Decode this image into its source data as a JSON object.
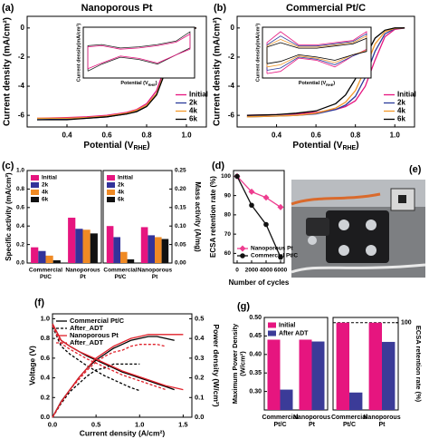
{
  "chart_data": [
    {
      "type": "line",
      "panel": "(a)",
      "title": "Nanoporous Pt",
      "xlabel": {
        "text": "Potential (V",
        "sub": "RHE",
        "after": ")"
      },
      "ylabel": "Current density (mA/cm²)",
      "xlim": [
        0.2,
        1.1
      ],
      "ylim": [
        -6.8,
        0.8
      ],
      "xticks": [
        0.4,
        0.6,
        0.8,
        {
          "value": 1,
          "label": "1.0"
        }
      ],
      "yticks": [
        0,
        -2,
        -4,
        -6
      ],
      "legend": "lower-right",
      "x": [
        0.25,
        0.4,
        0.5,
        0.6,
        0.7,
        0.75,
        0.8,
        0.85,
        0.9,
        0.95,
        1.0,
        1.05
      ],
      "series": [
        {
          "name": "Initial",
          "color": "#e6157f",
          "values": [
            -6.2,
            -6.15,
            -6.1,
            -6.0,
            -5.8,
            -5.6,
            -5.2,
            -4.3,
            -2.4,
            -0.7,
            -0.1,
            0.0
          ]
        },
        {
          "name": "2k",
          "color": "#2b3a9a",
          "values": [
            -6.3,
            -6.25,
            -6.2,
            -6.1,
            -5.9,
            -5.7,
            -5.3,
            -4.5,
            -2.6,
            -0.8,
            -0.1,
            0.0
          ]
        },
        {
          "name": "4k",
          "color": "#f39a2c",
          "values": [
            -6.2,
            -6.2,
            -6.15,
            -6.05,
            -5.85,
            -5.65,
            -5.3,
            -4.5,
            -2.7,
            -0.9,
            -0.1,
            0.0
          ]
        },
        {
          "name": "6k",
          "color": "#000000",
          "values": [
            -6.3,
            -6.3,
            -6.2,
            -6.1,
            -5.9,
            -5.75,
            -5.4,
            -4.6,
            -2.8,
            -0.9,
            -0.15,
            0.0
          ]
        }
      ]
    },
    {
      "type": "line",
      "xlabel": {
        "text": "Potential (V",
        "sub": "RHE",
        "after": ")"
      },
      "ylabel": "Current density(mA/cm²)",
      "xlim": [
        0,
        1.2
      ],
      "ylim": [
        -1.1,
        1.1
      ],
      "x": [
        0.05,
        0.05,
        0.2,
        0.4,
        0.6,
        0.8,
        1.0,
        1.15,
        1.15,
        1.0,
        0.8,
        0.6,
        0.4,
        0.2,
        0.05
      ],
      "series": [
        {
          "color": "#222222",
          "values": [
            -0.8,
            0.3,
            0.35,
            0.2,
            0.25,
            0.35,
            0.5,
            0.9,
            0.2,
            -0.1,
            -0.5,
            -0.3,
            -0.2,
            -0.5,
            -0.8
          ]
        },
        {
          "color": "#e6157f",
          "values": [
            -0.7,
            0.25,
            0.3,
            0.15,
            0.2,
            0.3,
            0.45,
            0.8,
            0.15,
            -0.1,
            -0.45,
            -0.25,
            -0.15,
            -0.45,
            -0.7
          ]
        }
      ]
    },
    {
      "type": "line",
      "panel": "(b)",
      "title": "Commercial Pt/C",
      "xlabel": {
        "text": "Potential (V",
        "sub": "RHE",
        "after": ")"
      },
      "ylabel": "Current density (mA/cm²)",
      "xlim": [
        0.2,
        1.1
      ],
      "ylim": [
        -6.8,
        0.8
      ],
      "xticks": [
        0.4,
        0.6,
        0.8,
        {
          "value": 1,
          "label": "1.0"
        }
      ],
      "yticks": [
        0,
        -2,
        -4,
        -6
      ],
      "legend": "lower-right",
      "x": [
        0.25,
        0.4,
        0.5,
        0.6,
        0.7,
        0.75,
        0.8,
        0.85,
        0.9,
        0.95,
        1.0,
        1.05
      ],
      "series": [
        {
          "name": "Initial",
          "color": "#e6157f",
          "values": [
            -6.0,
            -5.95,
            -5.9,
            -5.8,
            -5.6,
            -5.4,
            -5.0,
            -4.0,
            -2.2,
            -0.6,
            -0.1,
            0.0
          ]
        },
        {
          "name": "2k",
          "color": "#2b3a9a",
          "values": [
            -6.1,
            -6.05,
            -6.0,
            -5.9,
            -5.6,
            -5.3,
            -4.7,
            -3.4,
            -1.6,
            -0.4,
            -0.05,
            0.0
          ]
        },
        {
          "name": "4k",
          "color": "#f39a2c",
          "values": [
            -6.1,
            -6.05,
            -6.0,
            -5.85,
            -5.5,
            -5.1,
            -4.3,
            -2.8,
            -1.1,
            -0.25,
            -0.03,
            0.0
          ]
        },
        {
          "name": "6k",
          "color": "#000000",
          "values": [
            -6.0,
            -5.95,
            -5.85,
            -5.7,
            -5.2,
            -4.6,
            -3.5,
            -2.0,
            -0.7,
            -0.15,
            0.0,
            0.0
          ]
        }
      ]
    },
    {
      "type": "line",
      "xlabel": {
        "text": "Potential (V",
        "sub": "RHE",
        "after": ")"
      },
      "ylabel": "Current density(mA/cm²)",
      "xlim": [
        0,
        1.2
      ],
      "ylim": [
        -1.2,
        1.1
      ],
      "x": [
        0.05,
        0.05,
        0.2,
        0.4,
        0.6,
        0.8,
        1.0,
        1.15,
        1.15,
        1.0,
        0.8,
        0.6,
        0.4,
        0.2,
        0.05
      ],
      "series": [
        {
          "color": "#e6157f",
          "values": [
            -1.0,
            0.4,
            0.9,
            0.3,
            0.3,
            0.4,
            0.5,
            0.9,
            0.1,
            -0.2,
            -0.7,
            -0.4,
            -0.3,
            -0.9,
            -1.0
          ]
        },
        {
          "color": "#2b3a9a",
          "values": [
            -0.85,
            0.3,
            0.7,
            0.25,
            0.25,
            0.35,
            0.45,
            0.8,
            0.05,
            -0.2,
            -0.6,
            -0.35,
            -0.25,
            -0.75,
            -0.85
          ]
        },
        {
          "color": "#f39a2c",
          "values": [
            -0.7,
            0.25,
            0.55,
            0.2,
            0.2,
            0.3,
            0.4,
            0.7,
            0.05,
            -0.15,
            -0.5,
            -0.3,
            -0.2,
            -0.6,
            -0.7
          ]
        },
        {
          "color": "#000000",
          "values": [
            -0.55,
            0.2,
            0.4,
            0.15,
            0.15,
            0.25,
            0.35,
            0.6,
            0.0,
            -0.15,
            -0.4,
            -0.25,
            -0.15,
            -0.45,
            -0.55
          ]
        }
      ]
    },
    {
      "type": "bar",
      "panel": "(c)",
      "ylabel": "Specific activity (mA/cm²)",
      "categories": [
        [
          "Commercial",
          "Pt/C"
        ],
        [
          "Nanoporous",
          "Pt"
        ]
      ],
      "ylim": [
        0,
        1.0
      ],
      "yticks": [
        {
          "value": 0,
          "label": "0.0"
        },
        0.2,
        0.4,
        0.6,
        0.8,
        {
          "value": 1,
          "label": "1.0"
        }
      ],
      "legend": "upper-left",
      "series": [
        {
          "name": "Initial",
          "color": "#e6157f",
          "values": [
            0.17,
            0.49
          ]
        },
        {
          "name": "2k",
          "color": "#33339a",
          "values": [
            0.13,
            0.37
          ]
        },
        {
          "name": "4k",
          "color": "#f08a24",
          "values": [
            0.08,
            0.36
          ]
        },
        {
          "name": "6k",
          "color": "#111111",
          "values": [
            0.03,
            0.32
          ]
        }
      ]
    },
    {
      "type": "bar",
      "y_side": "right",
      "ylabel": "Mass activity (A/mg)",
      "categories": [
        [
          "Commercial",
          "Pt/C"
        ],
        [
          "Nanoporous",
          "Pt"
        ]
      ],
      "ylim": [
        0,
        0.25
      ],
      "yticks": [
        {
          "value": 0,
          "label": "0.00"
        },
        0.05,
        {
          "value": 0.1,
          "label": "0.10"
        },
        0.15,
        {
          "value": 0.2,
          "label": "0.20"
        },
        0.25
      ],
      "legend": "upper-left",
      "series": [
        {
          "name": "Initial",
          "color": "#e6157f",
          "values": [
            0.1,
            0.097
          ]
        },
        {
          "name": "2k",
          "color": "#33339a",
          "values": [
            0.07,
            0.075
          ]
        },
        {
          "name": "4k",
          "color": "#f08a24",
          "values": [
            0.03,
            0.07
          ]
        },
        {
          "name": "6k",
          "color": "#111111",
          "values": [
            0.01,
            0.065
          ]
        }
      ]
    },
    {
      "type": "line",
      "panel": "(d)",
      "xlabel": "Number of cycles",
      "ylabel": "ECSA retention rate (%)",
      "xlim": [
        -500,
        6500
      ],
      "ylim": [
        55,
        103
      ],
      "xticks": [
        0,
        2000,
        4000,
        6000
      ],
      "yticks": [
        60,
        70,
        80,
        90,
        100
      ],
      "legend": "lower-left",
      "x": [
        0,
        2000,
        4000,
        6000
      ],
      "series": [
        {
          "name": "Nanoporous Pt",
          "color": "#ee3d8f",
          "marker": "diamond",
          "values": [
            100,
            92,
            89,
            84
          ]
        },
        {
          "name": "Commercial Pt/C",
          "color": "#111111",
          "marker": "circle",
          "values": [
            100,
            85,
            75,
            58
          ]
        }
      ]
    },
    {
      "type": "image",
      "panel": "(e)"
    },
    {
      "type": "line",
      "panel": "(f)",
      "xlabel": "Current density (A/cm²)",
      "ylabel": "Voltage (V)",
      "y2label": "Power density (W/cm²)",
      "xlim": [
        0,
        1.6
      ],
      "ylim": [
        0,
        1.05
      ],
      "y2lim": [
        0,
        0.525
      ],
      "xticks": [
        {
          "value": 0,
          "label": "0.0"
        },
        0.5,
        {
          "value": 1,
          "label": "1.0"
        },
        1.5
      ],
      "yticks": [
        {
          "value": 0,
          "label": "0.0"
        },
        0.2,
        0.4,
        0.6,
        0.8,
        {
          "value": 1,
          "label": "1.0"
        }
      ],
      "y2ticks": [
        {
          "value": 0,
          "label": "0.0"
        },
        0.1,
        0.2,
        0.3,
        0.4,
        0.5
      ],
      "legend": "upper-left",
      "x": [
        0,
        0.1,
        0.2,
        0.3,
        0.4,
        0.5,
        0.6,
        0.7,
        0.8,
        0.9,
        1.0,
        1.1,
        1.2,
        1.3,
        1.4,
        1.5
      ],
      "series": [
        {
          "name": "Commercial Pt/C",
          "color": "#000000",
          "dash": false,
          "values": [
            0.95,
            0.78,
            0.72,
            0.67,
            0.62,
            0.58,
            0.54,
            0.5,
            0.46,
            0.43,
            0.4,
            0.37,
            0.34,
            0.31,
            0.28,
            null
          ],
          "power": [
            0,
            0.08,
            0.14,
            0.2,
            0.25,
            0.29,
            0.32,
            0.35,
            0.37,
            0.39,
            0.4,
            0.41,
            0.41,
            0.4,
            0.39,
            null
          ]
        },
        {
          "name": "After_ADT",
          "color": "#000000",
          "dash": true,
          "values": [
            0.92,
            0.72,
            0.64,
            0.58,
            0.52,
            0.47,
            0.42,
            0.38,
            0.34,
            0.3,
            0.27,
            null,
            null,
            null,
            null,
            null
          ],
          "power": [
            0,
            0.07,
            0.13,
            0.17,
            0.21,
            0.24,
            0.25,
            0.27,
            0.27,
            0.27,
            0.27,
            null,
            null,
            null,
            null,
            null
          ]
        },
        {
          "name": "Nanoporous Pt",
          "color": "#e0202a",
          "dash": false,
          "values": [
            0.95,
            0.78,
            0.72,
            0.67,
            0.63,
            0.59,
            0.55,
            0.51,
            0.47,
            0.44,
            0.41,
            0.38,
            0.35,
            0.32,
            0.3,
            0.28
          ],
          "power": [
            0,
            0.078,
            0.14,
            0.2,
            0.25,
            0.3,
            0.33,
            0.36,
            0.38,
            0.4,
            0.41,
            0.42,
            0.42,
            0.42,
            0.42,
            0.42
          ]
        },
        {
          "name": "After_ADT",
          "color": "#e0202a",
          "dash": true,
          "values": [
            0.93,
            0.75,
            0.69,
            0.64,
            0.59,
            0.55,
            0.51,
            0.47,
            0.43,
            0.4,
            0.37,
            0.34,
            0.31,
            0.28,
            null,
            null
          ],
          "power": [
            0,
            0.075,
            0.14,
            0.19,
            0.24,
            0.28,
            0.31,
            0.33,
            0.34,
            0.36,
            0.37,
            0.37,
            0.37,
            0.36,
            null,
            null
          ]
        }
      ]
    },
    {
      "type": "bar",
      "panel": "(g)",
      "ylabel": [
        "Maximum Power Density",
        "(W/cm²)"
      ],
      "categories": [
        [
          "Commercial",
          "Pt/C"
        ],
        [
          "Nanoporous",
          "Pt"
        ]
      ],
      "ylim": [
        0.25,
        0.5
      ],
      "yticks": [
        {
          "value": 0.3,
          "label": "0.30"
        },
        0.35,
        {
          "value": 0.4,
          "label": "0.40"
        },
        0.45,
        {
          "value": 0.5,
          "label": "0.50"
        }
      ],
      "legend": "upper-left",
      "series": [
        {
          "name": "Initial",
          "color": "#e6157f",
          "values": [
            0.44,
            0.44
          ]
        },
        {
          "name": "After ADT",
          "color": "#3b3b98",
          "values": [
            0.305,
            0.435
          ]
        }
      ]
    },
    {
      "type": "bar",
      "y_side": "right",
      "ylabel": "ECSA retention rate (%)",
      "categories": [
        [
          "Commercial",
          "Pt/C"
        ],
        [
          "Nanoporous",
          "Pt"
        ]
      ],
      "ylim": [
        50,
        103
      ],
      "yticks": [
        100
      ],
      "reference_line": 100,
      "series": [
        {
          "color": "#e6157f",
          "values": [
            100,
            100
          ]
        },
        {
          "color": "#3b3b98",
          "values": [
            60,
            89
          ]
        }
      ]
    }
  ]
}
